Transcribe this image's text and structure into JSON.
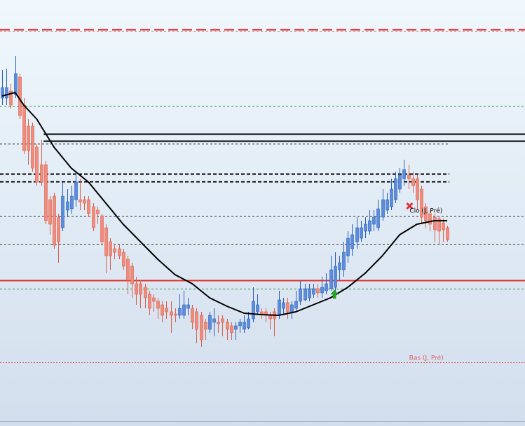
{
  "chart_data": {
    "type": "candlestick",
    "xlim": [
      -0.5,
      121
    ],
    "ylim": [
      0,
      608
    ],
    "up_color": "#5b8ddc",
    "down_color": "#f28b7a",
    "open": [
      468,
      468,
      478,
      473,
      498,
      458,
      428,
      428,
      398,
      373,
      373,
      323,
      328,
      298,
      283,
      308,
      310,
      323,
      323,
      323,
      323,
      313,
      308,
      300,
      283,
      263,
      253,
      253,
      248,
      238,
      228,
      203,
      203,
      198,
      188,
      183,
      178,
      173,
      168,
      163,
      160,
      158,
      158,
      168,
      168,
      163,
      158,
      148,
      138,
      148,
      148,
      153,
      148,
      143,
      138,
      143,
      138,
      140,
      153,
      163,
      163,
      163,
      158,
      163,
      158,
      168,
      176,
      163,
      168,
      178,
      180,
      183,
      188,
      196,
      190,
      193,
      196,
      198,
      223,
      223,
      243,
      253,
      263,
      268,
      278,
      278,
      288,
      283,
      298,
      308,
      313,
      323,
      338,
      353,
      358,
      353,
      353,
      338,
      313,
      303,
      298,
      296,
      290,
      283
    ],
    "high": [
      508,
      510,
      488,
      528,
      503,
      468,
      438,
      433,
      403,
      408,
      378,
      328,
      333,
      303,
      348,
      338,
      343,
      363,
      353,
      328,
      328,
      318,
      313,
      303,
      288,
      268,
      258,
      258,
      253,
      243,
      233,
      213,
      208,
      203,
      193,
      188,
      183,
      178,
      178,
      178,
      168,
      188,
      193,
      183,
      173,
      168,
      163,
      153,
      163,
      168,
      158,
      158,
      153,
      148,
      148,
      153,
      158,
      163,
      198,
      188,
      168,
      168,
      163,
      168,
      193,
      183,
      183,
      178,
      193,
      208,
      203,
      203,
      203,
      203,
      213,
      218,
      243,
      248,
      243,
      263,
      278,
      288,
      298,
      293,
      298,
      308,
      308,
      323,
      338,
      333,
      353,
      363,
      368,
      380,
      373,
      363,
      358,
      343,
      318,
      308,
      303,
      300,
      296,
      286
    ],
    "low": [
      458,
      458,
      453,
      468,
      438,
      388,
      373,
      363,
      343,
      343,
      288,
      273,
      253,
      233,
      278,
      298,
      303,
      313,
      308,
      308,
      298,
      278,
      288,
      258,
      218,
      223,
      238,
      238,
      223,
      188,
      183,
      173,
      168,
      168,
      158,
      163,
      153,
      148,
      153,
      133,
      148,
      153,
      153,
      158,
      138,
      118,
      113,
      123,
      133,
      128,
      133,
      128,
      123,
      123,
      123,
      133,
      133,
      138,
      148,
      158,
      153,
      148,
      138,
      128,
      153,
      158,
      153,
      153,
      163,
      173,
      178,
      178,
      183,
      183,
      183,
      188,
      193,
      193,
      208,
      213,
      233,
      243,
      253,
      263,
      268,
      273,
      278,
      278,
      293,
      303,
      308,
      318,
      333,
      343,
      338,
      333,
      308,
      288,
      283,
      278,
      263,
      260,
      263,
      263
    ],
    "close": [
      483,
      483,
      458,
      503,
      443,
      393,
      393,
      368,
      348,
      348,
      293,
      288,
      258,
      263,
      328,
      320,
      328,
      348,
      320,
      318,
      303,
      283,
      303,
      263,
      243,
      243,
      248,
      243,
      228,
      208,
      203,
      188,
      188,
      183,
      168,
      178,
      168,
      158,
      163,
      158,
      158,
      168,
      173,
      173,
      148,
      138,
      123,
      138,
      158,
      153,
      146,
      148,
      138,
      133,
      143,
      148,
      148,
      153,
      178,
      173,
      160,
      158,
      153,
      153,
      180,
      176,
      163,
      173,
      178,
      196,
      196,
      196,
      196,
      190,
      198,
      203,
      223,
      228,
      233,
      248,
      268,
      273,
      283,
      283,
      288,
      293,
      298,
      310,
      323,
      323,
      338,
      353,
      358,
      366,
      353,
      343,
      323,
      298,
      293,
      288,
      280,
      278,
      280,
      266
    ],
    "average": {
      "color": "#000000",
      "x": [
        0,
        3,
        5,
        8,
        12,
        16,
        20,
        24,
        28,
        32,
        36,
        40,
        44,
        48,
        52,
        56,
        60,
        64,
        68,
        72,
        76,
        80,
        84,
        88,
        92,
        96,
        100,
        103
      ],
      "values": [
        471,
        476,
        458,
        438,
        398,
        368,
        348,
        318,
        288,
        263,
        238,
        216,
        203,
        183,
        171,
        161,
        159,
        158,
        163,
        173,
        183,
        198,
        218,
        243,
        273,
        288,
        293,
        293
      ]
    },
    "levels": [
      {
        "value": 566,
        "color": "#d42020",
        "style": "longdash"
      },
      {
        "value": 564,
        "color": "#e06060",
        "style": "dash"
      },
      {
        "value": 457,
        "color": "#2e8b3e",
        "style": "dash"
      },
      {
        "value": 417,
        "color": "#000000",
        "style": "solid",
        "start": 9.6
      },
      {
        "value": 407,
        "color": "#000000",
        "style": "solid",
        "start": 9.6
      },
      {
        "value": 403,
        "color": "#000000",
        "style": "dash",
        "end": 103.5
      },
      {
        "value": 360,
        "color": "#000000",
        "style": "boldash",
        "end": 103.5
      },
      {
        "value": 349,
        "color": "#000000",
        "style": "boldash",
        "end": 103.5
      },
      {
        "value": 300,
        "color": "#333333",
        "style": "dash"
      },
      {
        "value": 260,
        "color": "#333333",
        "style": "dash"
      },
      {
        "value": 208,
        "color": "#e03030",
        "style": "solid"
      },
      {
        "value": 196,
        "color": "#2e8b3e",
        "style": "dash"
      },
      {
        "value": 91,
        "color": "#e06060",
        "style": "dot"
      }
    ],
    "annotations": [
      {
        "text": "Clo (J, Pré)",
        "x": 94.3,
        "value": 307,
        "color": "#000000"
      },
      {
        "text": "Bas (J, Pré)",
        "x": 94.2,
        "value": 97,
        "color": "#e06060"
      }
    ],
    "sell_marker": {
      "x": 94.3,
      "value": 314,
      "color": "#e03030"
    },
    "buy_marker": {
      "x": 76.9,
      "value": 188,
      "color": "#22aa22"
    }
  }
}
